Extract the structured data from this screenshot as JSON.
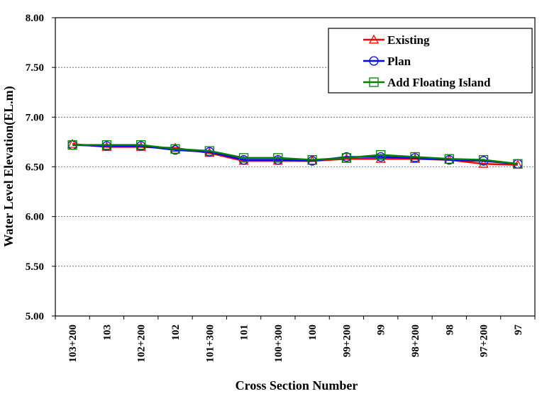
{
  "chart_data": {
    "type": "line",
    "title": "",
    "xlabel": "Cross Section Number",
    "ylabel": "Water  Level  Elevation(EL.m)",
    "ylim": [
      5.0,
      8.0
    ],
    "yticks": [
      "5.00",
      "5.50",
      "6.00",
      "6.50",
      "7.00",
      "7.50",
      "8.00"
    ],
    "grid": "horizontal dashed",
    "legend_position": "top-right",
    "categories": [
      "103+200",
      "103",
      "102+200",
      "102",
      "101+300",
      "101",
      "100+300",
      "100",
      "99+200",
      "99",
      "98+200",
      "98",
      "97+200",
      "97"
    ],
    "series": [
      {
        "name": "Existing",
        "color": "#ff0000",
        "marker": "triangle",
        "values": [
          6.73,
          6.7,
          6.7,
          6.69,
          6.64,
          6.56,
          6.56,
          6.56,
          6.58,
          6.58,
          6.58,
          6.57,
          6.53,
          6.52
        ]
      },
      {
        "name": "Plan",
        "color": "#0000ff",
        "marker": "circle",
        "values": [
          6.72,
          6.71,
          6.71,
          6.67,
          6.65,
          6.57,
          6.57,
          6.56,
          6.6,
          6.6,
          6.59,
          6.57,
          6.56,
          6.53
        ]
      },
      {
        "name": "Add Floating Island",
        "color": "#008000",
        "marker": "square",
        "values": [
          6.72,
          6.72,
          6.72,
          6.68,
          6.66,
          6.59,
          6.59,
          6.57,
          6.59,
          6.62,
          6.6,
          6.58,
          6.57,
          6.53
        ]
      }
    ]
  }
}
